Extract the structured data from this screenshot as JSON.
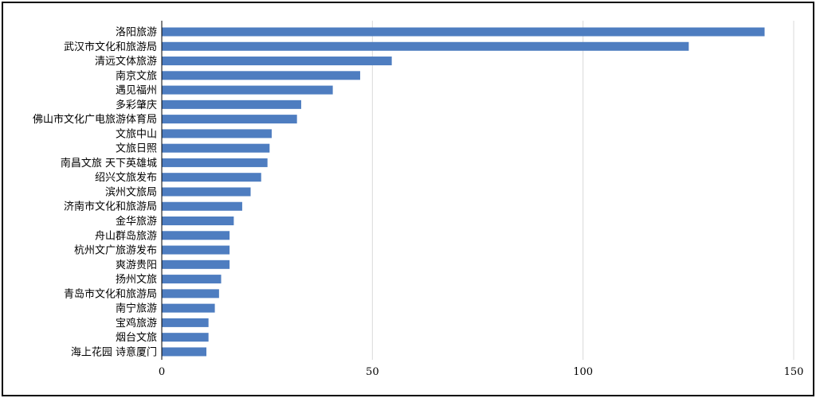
{
  "chart_data": {
    "type": "bar",
    "orientation": "horizontal",
    "title": "",
    "xlabel": "",
    "ylabel": "",
    "xlim": [
      0,
      150
    ],
    "x_ticks": [
      0,
      50,
      100,
      150
    ],
    "x_tick_labels": [
      "0",
      "50",
      "100",
      "150"
    ],
    "grid": "vertical",
    "legend": "none",
    "bar_color": "#4e7dc0",
    "gridline_color": "#d9d9d9",
    "categories": [
      "洛阳旅游",
      "武汉市文化和旅游局",
      "清远文体旅游",
      "南京文旅",
      "遇见福州",
      "多彩肇庆",
      "佛山市文化广电旅游体育局",
      "文旅中山",
      "文旅日照",
      "南昌文旅 天下英雄城",
      "绍兴文旅发布",
      "滨州文旅局",
      "济南市文化和旅游局",
      "金华旅游",
      "舟山群岛旅游",
      "杭州文广旅游发布",
      "爽游贵阳",
      "扬州文旅",
      "青岛市文化和旅游局",
      "南宁旅游",
      "宝鸡旅游",
      "烟台文旅",
      "海上花园 诗意厦门"
    ],
    "values": [
      143,
      125,
      54.5,
      47,
      40.5,
      33,
      32,
      26,
      25.5,
      25,
      23.5,
      21,
      19,
      17,
      16,
      16,
      16,
      14,
      13.5,
      12.5,
      11,
      11,
      10.5
    ]
  }
}
